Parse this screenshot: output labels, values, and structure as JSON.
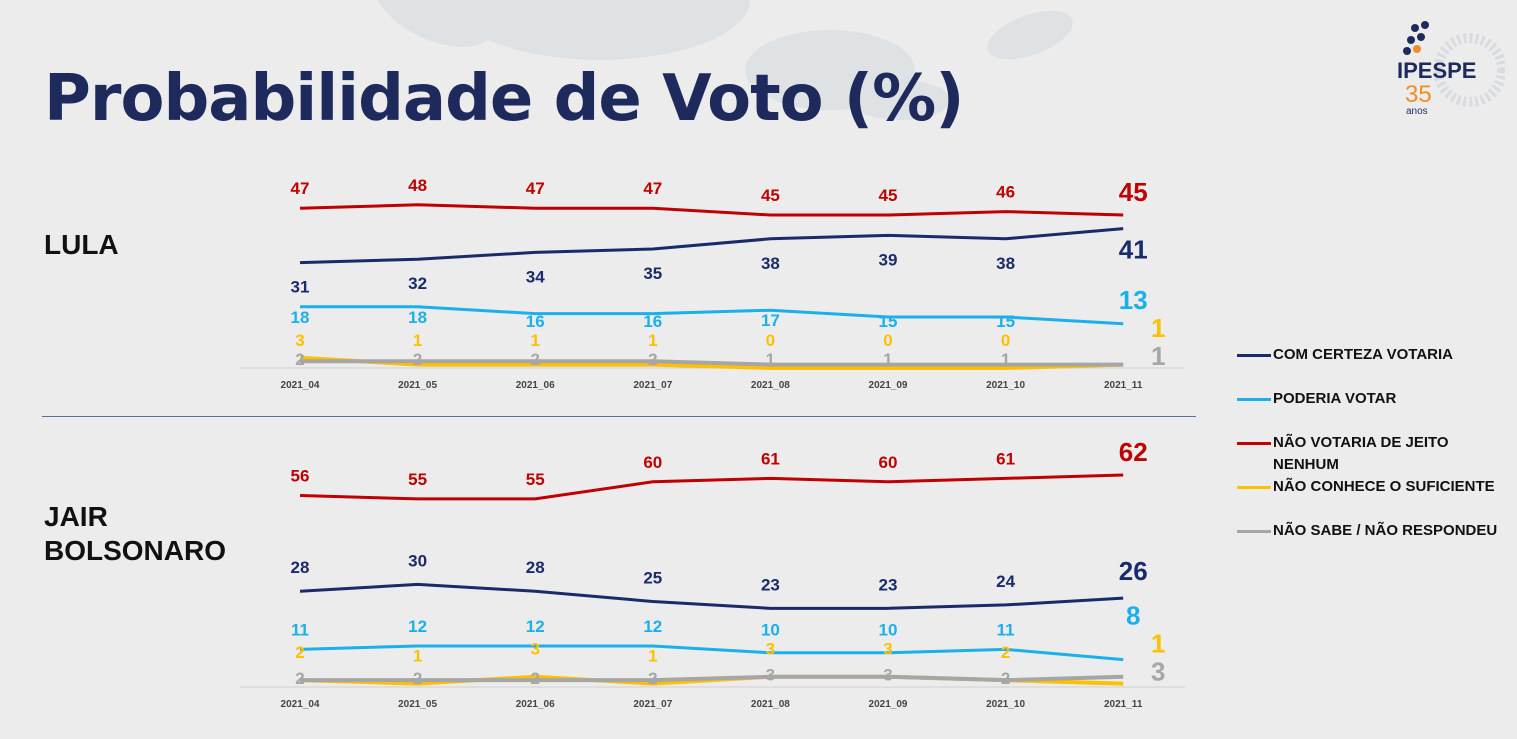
{
  "title": "Probabilidade de Voto (%)",
  "logo": {
    "name": "IPESPE",
    "years": "35",
    "sub": "anos"
  },
  "colors": {
    "com_certeza": "#1a2b6b",
    "poderia": "#1ab0ec",
    "nao_votaria": "#c00000",
    "nao_conhece": "#ffc000",
    "nao_sabe": "#a6a6a6",
    "title": "#1e2a5c"
  },
  "legend": [
    {
      "label": "COM CERTEZA VOTARIA",
      "color": "#1a2b6b"
    },
    {
      "label": "PODERIA VOTAR",
      "color": "#1ab0ec"
    },
    {
      "label": "NÃO VOTARIA DE JEITO NENHUM",
      "color": "#c00000"
    },
    {
      "label": "NÃO CONHECE O SUFICIENTE",
      "color": "#ffc000"
    },
    {
      "label": "NÃO SABE / NÃO RESPONDEU",
      "color": "#a6a6a6"
    }
  ],
  "chart_data": [
    {
      "type": "line",
      "title": "LULA",
      "categories": [
        "2021_04",
        "2021_05",
        "2021_06",
        "2021_07",
        "2021_08",
        "2021_09",
        "2021_10",
        "2021_11"
      ],
      "series": [
        {
          "name": "NÃO VOTARIA DE JEITO NENHUM",
          "color": "#c00000",
          "values": [
            47,
            48,
            47,
            47,
            45,
            45,
            46,
            45
          ]
        },
        {
          "name": "COM CERTEZA VOTARIA",
          "color": "#1a2b6b",
          "values": [
            31,
            32,
            34,
            35,
            38,
            39,
            38,
            41
          ]
        },
        {
          "name": "PODERIA VOTAR",
          "color": "#1ab0ec",
          "values": [
            18,
            18,
            16,
            16,
            17,
            15,
            15,
            13
          ]
        },
        {
          "name": "NÃO CONHECE O SUFICIENTE",
          "color": "#ffc000",
          "values": [
            3,
            1,
            1,
            1,
            0,
            0,
            0,
            1
          ]
        },
        {
          "name": "NÃO SABE / NÃO RESPONDEU",
          "color": "#a6a6a6",
          "values": [
            2,
            2,
            2,
            2,
            1,
            1,
            1,
            1
          ]
        }
      ]
    },
    {
      "type": "line",
      "title": "JAIR BOLSONARO",
      "categories": [
        "2021_04",
        "2021_05",
        "2021_06",
        "2021_07",
        "2021_08",
        "2021_09",
        "2021_10",
        "2021_11"
      ],
      "series": [
        {
          "name": "NÃO VOTARIA DE JEITO NENHUM",
          "color": "#c00000",
          "values": [
            56,
            55,
            55,
            60,
            61,
            60,
            61,
            62
          ]
        },
        {
          "name": "COM CERTEZA VOTARIA",
          "color": "#1a2b6b",
          "values": [
            28,
            30,
            28,
            25,
            23,
            23,
            24,
            26
          ]
        },
        {
          "name": "PODERIA VOTAR",
          "color": "#1ab0ec",
          "values": [
            11,
            12,
            12,
            12,
            10,
            10,
            11,
            8
          ]
        },
        {
          "name": "NÃO CONHECE O SUFICIENTE",
          "color": "#ffc000",
          "values": [
            2,
            1,
            3,
            1,
            3,
            3,
            2,
            1
          ]
        },
        {
          "name": "NÃO SABE / NÃO RESPONDEU",
          "color": "#a6a6a6",
          "values": [
            2,
            2,
            2,
            2,
            3,
            3,
            2,
            3
          ]
        }
      ]
    }
  ]
}
